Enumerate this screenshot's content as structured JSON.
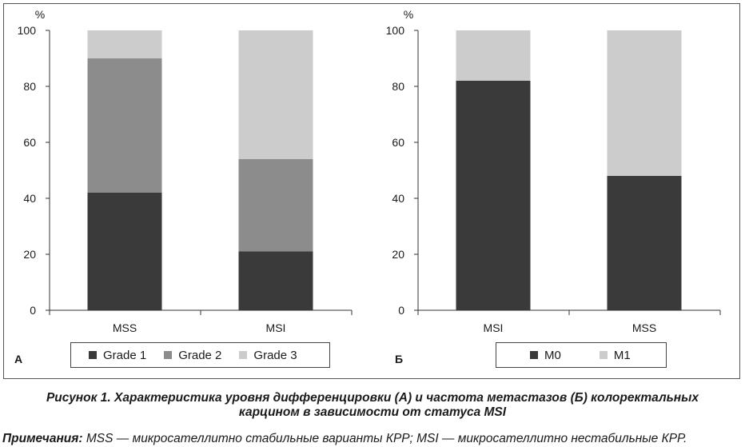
{
  "chart_data": [
    {
      "id": "A",
      "panel_label": "А",
      "type": "bar",
      "stacked": true,
      "unit_label": "%",
      "ylim": [
        0,
        100
      ],
      "yticks": [
        0,
        20,
        40,
        60,
        80,
        100
      ],
      "categories": [
        "MSS",
        "MSI"
      ],
      "series": [
        {
          "name": "Grade 1",
          "color": "#3a3a3a",
          "values": [
            42,
            21
          ]
        },
        {
          "name": "Grade 2",
          "color": "#8c8c8c",
          "values": [
            48,
            33
          ]
        },
        {
          "name": "Grade 3",
          "color": "#cccccc",
          "values": [
            10,
            46
          ]
        }
      ],
      "legend": "bottom"
    },
    {
      "id": "B",
      "panel_label": "Б",
      "type": "bar",
      "stacked": true,
      "unit_label": "%",
      "ylim": [
        0,
        100
      ],
      "yticks": [
        0,
        20,
        40,
        60,
        80,
        100
      ],
      "categories": [
        "MSI",
        "MSS"
      ],
      "series": [
        {
          "name": "M0",
          "color": "#3a3a3a",
          "values": [
            82,
            48
          ]
        },
        {
          "name": "M1",
          "color": "#cccccc",
          "values": [
            18,
            52
          ]
        }
      ],
      "legend": "bottom"
    }
  ],
  "caption": {
    "line1": "Рисунок 1.  Характеристика уровня дифференцировки (А) и частота метастазов (Б) колоректальных",
    "line2": "карцином в зависимости от статуса MSI"
  },
  "note": {
    "label": "Примечания:",
    "text": " MSS — микросателлитно стабильные варианты КРР; MSI — микросателлитно нестабильные КРР."
  }
}
